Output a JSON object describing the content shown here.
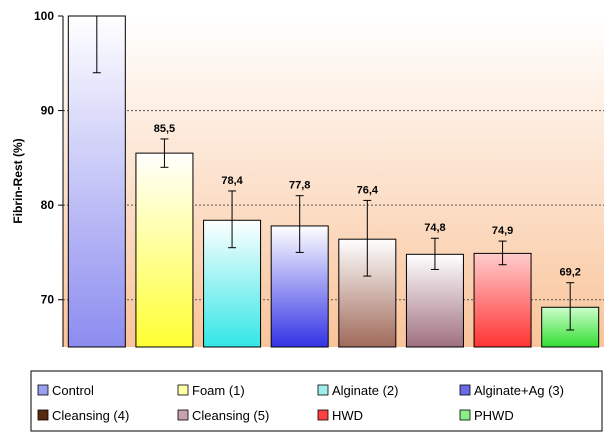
{
  "chart_data": {
    "type": "bar",
    "title": "",
    "xlabel": "",
    "ylabel": "Fibrin-Rest (%)",
    "ylim": [
      65,
      100
    ],
    "yticks": [
      70,
      80,
      90,
      100
    ],
    "grid": "horizontal-dotted",
    "legend_position": "bottom",
    "categories": [
      "Control",
      "Foam (1)",
      "Alginate (2)",
      "Alginate+Ag (3)",
      "Cleansing (4)",
      "Cleansing (5)",
      "HWD",
      "PHWD"
    ],
    "values": [
      100,
      85.5,
      78.4,
      77.8,
      76.4,
      74.8,
      74.9,
      69.2
    ],
    "data_labels": [
      "",
      "85,5",
      "78,4",
      "77,8",
      "76,4",
      "74,8",
      "74,9",
      "69,2"
    ],
    "error_low": [
      94,
      84,
      75.5,
      75,
      72.5,
      73.2,
      73.7,
      66.8
    ],
    "error_high": [
      100,
      87,
      81.5,
      81,
      80.5,
      76.5,
      76.2,
      71.8
    ],
    "colors": [
      {
        "top": "#ffffff",
        "bottom": "#8c8cf0",
        "legend": "#9aa0f0"
      },
      {
        "top": "#ffffff",
        "bottom": "#ffff33",
        "legend": "#ffffaa"
      },
      {
        "top": "#ffffff",
        "bottom": "#33e6e6",
        "legend": "#9eeeee"
      },
      {
        "top": "#ffffff",
        "bottom": "#3333e6",
        "legend": "#6a6ae6"
      },
      {
        "top": "#ffffff",
        "bottom": "#a06a5a",
        "legend": "#5a2a10"
      },
      {
        "top": "#ffffff",
        "bottom": "#a07080",
        "legend": "#c8a0b0"
      },
      {
        "top": "#ffcccc",
        "bottom": "#ff3333",
        "legend": "#ff4040"
      },
      {
        "top": "#ccffcc",
        "bottom": "#33dd33",
        "legend": "#88ee88"
      }
    ],
    "background": {
      "top": "#ffffff",
      "bottom": "#f9c49a"
    }
  }
}
